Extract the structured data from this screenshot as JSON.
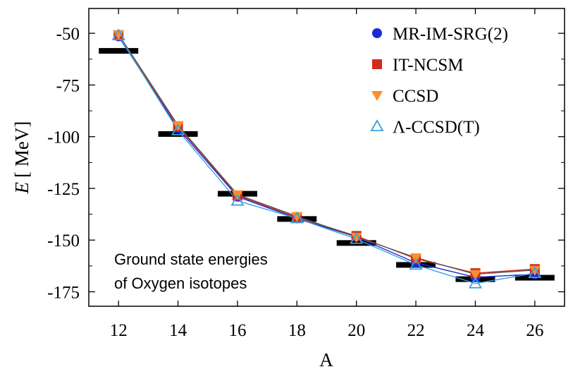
{
  "chart_data": {
    "type": "line",
    "xlabel": "A",
    "ylabel_var": "E",
    "ylabel_unit": "[ MeV]",
    "x": [
      12,
      14,
      16,
      18,
      20,
      22,
      24,
      26
    ],
    "xlim": [
      11,
      27
    ],
    "ylim": [
      -182,
      -38
    ],
    "xticks": [
      12,
      14,
      16,
      18,
      20,
      22,
      24,
      26
    ],
    "yticks": [
      -50,
      -75,
      -100,
      -125,
      -150,
      -175
    ],
    "grid": false,
    "legend_position": "top-right",
    "experiment_values": [
      -58.5,
      -98.7,
      -127.6,
      -139.8,
      -151.4,
      -162.0,
      -168.9,
      -168.2
    ],
    "series": [
      {
        "name": "MR-IM-SRG(2)",
        "marker": "circle",
        "color": "#1a2bd6",
        "line_color": "#1a2bd6",
        "values": [
          -51.5,
          -96.0,
          -129.0,
          -139.5,
          -148.5,
          -161.0,
          -168.0,
          -166.5
        ]
      },
      {
        "name": "IT-NCSM",
        "marker": "square",
        "color": "#d42a1c",
        "line_color": "#d42a1c",
        "values": [
          -51.0,
          -95.0,
          -128.5,
          -139.0,
          -148.0,
          -159.0,
          -166.0,
          -164.0
        ]
      },
      {
        "name": "CCSD",
        "marker": "triangle-down",
        "color": "#f7902b",
        "line_color": "#555555",
        "values": [
          -50.5,
          -94.5,
          -128.0,
          -138.5,
          -148.5,
          -158.5,
          -166.5,
          -164.5
        ]
      },
      {
        "name": "Λ-CCSD(T)",
        "marker": "triangle-up-open",
        "color": "#3aa0e3",
        "line_color": "#3aa0e3",
        "values": [
          -51.0,
          -97.0,
          -131.0,
          -139.5,
          -149.5,
          -162.0,
          -171.0,
          -166.0
        ]
      }
    ],
    "annotation": [
      "Ground state energies",
      "of Oxygen isotopes"
    ]
  }
}
